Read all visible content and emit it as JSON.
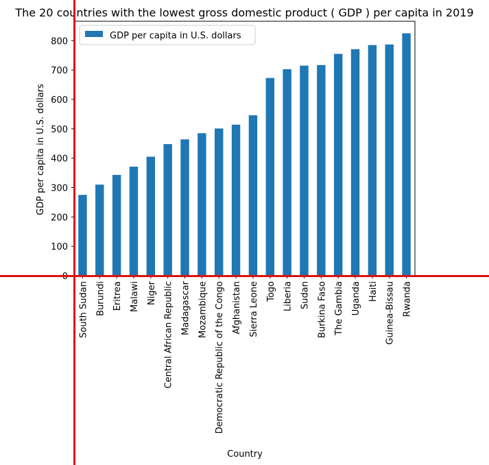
{
  "chart_data": {
    "type": "bar",
    "title": "The 20 countries with the lowest gross domestic product ( GDP ) per capita in 2019",
    "xlabel": "Country",
    "ylabel": "GDP per capita in U.S. dollars",
    "ylim": [
      0,
      866
    ],
    "yticks": [
      0,
      100,
      200,
      300,
      400,
      500,
      600,
      700,
      800
    ],
    "grid": false,
    "legend_position": "top-left",
    "categories": [
      "South Sudan",
      "Burundi",
      "Eritrea",
      "Malawi",
      "Niger",
      "Central African Republic",
      "Madagascar",
      "Mozambique",
      "Democratic Republic of the Congo",
      "Afghanistan",
      "Sierra Leone",
      "Togo",
      "Liberia",
      "Sudan",
      "Burkina Faso",
      "The Gambia",
      "Uganda",
      "Haiti",
      "Guinea-Bissau",
      "Rwanda"
    ],
    "series": [
      {
        "name": "GDP per capita in U.S. dollars",
        "color": "#1f77b4",
        "values": [
          275,
          310,
          343,
          371,
          405,
          448,
          464,
          485,
          501,
          514,
          546,
          673,
          703,
          715,
          717,
          755,
          771,
          785,
          787,
          825
        ]
      }
    ]
  },
  "colors": {
    "bar": "#1f77b4",
    "overlay_lines": "#dd1111"
  }
}
